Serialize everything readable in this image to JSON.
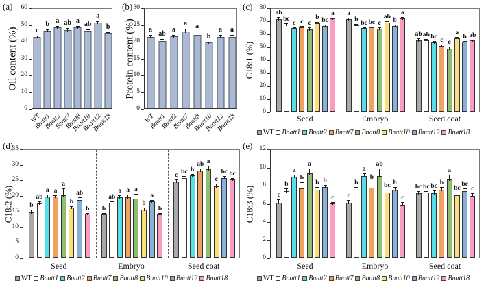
{
  "figure": {
    "background": "#ffffff",
    "axis_color": "#333333",
    "box_color": "#7a7a7a",
    "panel_labels": [
      "(a)",
      "(b)",
      "(c)",
      "(d)",
      "(e)"
    ]
  },
  "chart_data": [
    {
      "id": "a",
      "type": "bar",
      "panel_label": "(a)",
      "ylabel": "Oil content (%)",
      "ylim": [
        0,
        60
      ],
      "ytick_step": 10,
      "grid": false,
      "bar_color": "#ABB9D3",
      "bar_border": "#4A5568",
      "categories": [
        "WT",
        "Bnatt1",
        "Bnatt2",
        "Bnatt7",
        "Bnatt8",
        "Bnatt10",
        "Bnatt12",
        "Bnatt18"
      ],
      "values": [
        42.3,
        46.0,
        48.0,
        46.5,
        48.3,
        46.0,
        51.0,
        45.0
      ],
      "errors": [
        1.0,
        0.8,
        0.8,
        1.2,
        0.6,
        0.8,
        0.7,
        0.5
      ],
      "sig_letters": [
        "c",
        "b",
        "a",
        "ab",
        "a",
        "ab",
        "a",
        "b"
      ]
    },
    {
      "id": "b",
      "type": "bar",
      "panel_label": "(b)",
      "ylabel": "Protein content (%)",
      "ylim": [
        0,
        30
      ],
      "ytick_step": 5,
      "grid": false,
      "bar_color": "#ABB9D3",
      "bar_border": "#4A5568",
      "categories": [
        "WT",
        "Bnatt1",
        "Bnatt2",
        "Bnatt7",
        "Bnatt8",
        "Bnatt10",
        "Bnatt12",
        "Bnatt18"
      ],
      "values": [
        21.2,
        20.1,
        21.5,
        22.8,
        21.8,
        19.5,
        21.3,
        21.3
      ],
      "errors": [
        0.6,
        0.5,
        0.4,
        0.9,
        1.0,
        0.4,
        0.5,
        0.6
      ],
      "sig_letters": [
        "a",
        "ab",
        "a",
        "a",
        "a",
        "b",
        "a",
        "a"
      ]
    },
    {
      "id": "c",
      "type": "grouped-bar",
      "panel_label": "(c)",
      "ylabel": "C18:1 (%)",
      "ylim": [
        0,
        80
      ],
      "ytick_step": 10,
      "grid": false,
      "legend_position": "bottom",
      "groups": [
        "Seed",
        "Embryo",
        "Seed coat"
      ],
      "series": [
        {
          "name": "WT",
          "italic": false,
          "color": "#A8A8A8",
          "values": [
            71.0,
            71.0,
            55.0
          ],
          "errors": [
            1.5,
            1.0,
            1.5
          ],
          "sig_letters": [
            "ab",
            "a",
            "ab"
          ]
        },
        {
          "name": "Bnatt1",
          "italic": true,
          "color": "#FFFFFF",
          "values": [
            67.0,
            66.5,
            54.8
          ],
          "errors": [
            0.8,
            0.8,
            1.2
          ],
          "sig_letters": [
            "bc",
            "b",
            "ab"
          ]
        },
        {
          "name": "Bnatt2",
          "italic": true,
          "color": "#57DFE8",
          "values": [
            64.0,
            64.0,
            53.0
          ],
          "errors": [
            0.8,
            0.8,
            1.0
          ],
          "sig_letters": [
            "c",
            "bc",
            "bc"
          ]
        },
        {
          "name": "Bnatt7",
          "italic": true,
          "color": "#F2A25F",
          "values": [
            65.0,
            64.5,
            50.5
          ],
          "errors": [
            0.8,
            0.8,
            1.2
          ],
          "sig_letters": [
            "c",
            "bc",
            "c"
          ]
        },
        {
          "name": "Bnatt8",
          "italic": true,
          "color": "#8FBE70",
          "values": [
            63.0,
            63.5,
            48.5
          ],
          "errors": [
            2.0,
            1.5,
            1.5
          ],
          "sig_letters": [
            "c",
            "c",
            "c"
          ]
        },
        {
          "name": "Bnatt10",
          "italic": true,
          "color": "#FCDE7B",
          "values": [
            68.0,
            68.5,
            56.5
          ],
          "errors": [
            0.8,
            1.2,
            1.0
          ],
          "sig_letters": [
            "b",
            "ab",
            "a"
          ]
        },
        {
          "name": "Bnatt12",
          "italic": true,
          "color": "#8BB0D8",
          "values": [
            66.0,
            66.0,
            53.5
          ],
          "errors": [
            0.8,
            0.8,
            0.8
          ],
          "sig_letters": [
            "bc",
            "b",
            "b"
          ]
        },
        {
          "name": "Bnatt18",
          "italic": true,
          "color": "#FB9BC4",
          "values": [
            71.5,
            71.5,
            54.5
          ],
          "errors": [
            0.8,
            1.2,
            0.8
          ],
          "sig_letters": [
            "a",
            "a",
            "ab"
          ]
        }
      ]
    },
    {
      "id": "d",
      "type": "grouped-bar",
      "panel_label": "(d)",
      "ylabel": "C18:2 (%)",
      "ylim": [
        0,
        35
      ],
      "ytick_step": 5,
      "grid": false,
      "legend_position": "bottom",
      "groups": [
        "Seed",
        "Embryo",
        "Seed coat"
      ],
      "series": [
        {
          "name": "WT",
          "italic": false,
          "color": "#A8A8A8",
          "values": [
            14.5,
            13.8,
            24.5
          ],
          "errors": [
            1.0,
            0.6,
            0.6
          ],
          "sig_letters": [
            "b",
            "b",
            "c"
          ]
        },
        {
          "name": "Bnatt1",
          "italic": true,
          "color": "#FFFFFF",
          "values": [
            17.5,
            17.6,
            25.5
          ],
          "errors": [
            0.5,
            0.5,
            0.6
          ],
          "sig_letters": [
            "ab",
            "ab",
            "bc"
          ]
        },
        {
          "name": "Bnatt2",
          "italic": true,
          "color": "#57DFE8",
          "values": [
            19.7,
            19.4,
            26.4
          ],
          "errors": [
            0.6,
            0.6,
            0.5
          ],
          "sig_letters": [
            "a",
            "a",
            "b"
          ]
        },
        {
          "name": "Bnatt7",
          "italic": true,
          "color": "#F2A25F",
          "values": [
            19.5,
            19.4,
            28.0
          ],
          "errors": [
            0.6,
            0.8,
            0.6
          ],
          "sig_letters": [
            "a",
            "a",
            "ab"
          ]
        },
        {
          "name": "Bnatt8",
          "italic": true,
          "color": "#8FBE70",
          "values": [
            20.0,
            19.0,
            28.4
          ],
          "errors": [
            2.2,
            1.5,
            1.0
          ],
          "sig_letters": [
            "a",
            "a",
            "a"
          ]
        },
        {
          "name": "Bnatt10",
          "italic": true,
          "color": "#FCDE7B",
          "values": [
            16.0,
            15.5,
            23.0
          ],
          "errors": [
            0.5,
            0.5,
            0.8
          ],
          "sig_letters": [
            "b",
            "b",
            "c"
          ]
        },
        {
          "name": "Bnatt12",
          "italic": true,
          "color": "#8BB0D8",
          "values": [
            18.5,
            18.0,
            25.5
          ],
          "errors": [
            0.8,
            0.6,
            0.6
          ],
          "sig_letters": [
            "ab",
            "a",
            "bc"
          ]
        },
        {
          "name": "Bnatt18",
          "italic": true,
          "color": "#FB9BC4",
          "values": [
            14.0,
            13.8,
            25.0
          ],
          "errors": [
            0.4,
            0.6,
            0.6
          ],
          "sig_letters": [
            "b",
            "b",
            "bc"
          ]
        }
      ]
    },
    {
      "id": "e",
      "type": "grouped-bar",
      "panel_label": "(e)",
      "ylabel": "C18:3 (%)",
      "ylim": [
        0,
        12
      ],
      "ytick_step": 2,
      "grid": false,
      "legend_position": "bottom",
      "groups": [
        "Seed",
        "Embryo",
        "Seed coat"
      ],
      "series": [
        {
          "name": "WT",
          "italic": false,
          "color": "#A8A8A8",
          "values": [
            6.05,
            6.05,
            7.1
          ],
          "errors": [
            0.4,
            0.3,
            0.2
          ],
          "sig_letters": [
            "c",
            "c",
            "bc"
          ]
        },
        {
          "name": "Bnatt1",
          "italic": true,
          "color": "#FFFFFF",
          "values": [
            7.3,
            7.5,
            7.2
          ],
          "errors": [
            0.3,
            0.3,
            0.15
          ],
          "sig_letters": [
            "b",
            "b",
            "bc"
          ]
        },
        {
          "name": "Bnatt2",
          "italic": true,
          "color": "#57DFE8",
          "values": [
            8.9,
            9.0,
            7.1
          ],
          "errors": [
            0.25,
            0.3,
            0.3
          ],
          "sig_letters": [
            "a",
            "a",
            "bc"
          ]
        },
        {
          "name": "Bnatt7",
          "italic": true,
          "color": "#F2A25F",
          "values": [
            7.6,
            7.7,
            7.5
          ],
          "errors": [
            0.7,
            0.7,
            0.3
          ],
          "sig_letters": [
            "b",
            "b",
            "b"
          ]
        },
        {
          "name": "Bnatt8",
          "italic": true,
          "color": "#8FBE70",
          "values": [
            9.3,
            9.0,
            8.6
          ],
          "errors": [
            0.5,
            0.8,
            0.5
          ],
          "sig_letters": [
            "a",
            "ab",
            "a"
          ]
        },
        {
          "name": "Bnatt10",
          "italic": true,
          "color": "#FCDE7B",
          "values": [
            7.5,
            7.2,
            6.9
          ],
          "errors": [
            0.25,
            0.3,
            0.3
          ],
          "sig_letters": [
            "b",
            "bc",
            "bc"
          ]
        },
        {
          "name": "Bnatt12",
          "italic": true,
          "color": "#8BB0D8",
          "values": [
            7.8,
            7.5,
            7.3
          ],
          "errors": [
            0.2,
            0.3,
            0.3
          ],
          "sig_letters": [
            "b",
            "b",
            "bc"
          ]
        },
        {
          "name": "Bnatt18",
          "italic": true,
          "color": "#FB9BC4",
          "values": [
            5.95,
            5.85,
            6.8
          ],
          "errors": [
            0.2,
            0.25,
            0.3
          ],
          "sig_letters": [
            "c",
            "c",
            "c"
          ]
        }
      ]
    }
  ]
}
